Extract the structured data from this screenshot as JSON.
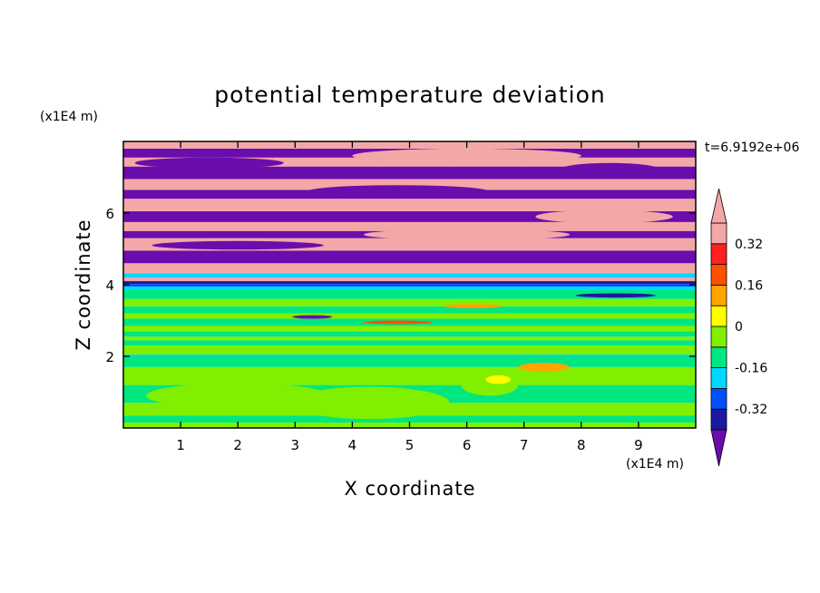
{
  "chart_data": {
    "type": "heatmap",
    "title": "potential temperature deviation",
    "xlabel": "X coordinate",
    "ylabel": "Z coordinate",
    "x_unit": "(x1E4 m)",
    "y_unit": "(x1E4 m)",
    "time_label": "t=6.9192e+06",
    "xlim": [
      0,
      10
    ],
    "ylim": [
      0,
      8
    ],
    "x_ticks": [
      1,
      2,
      3,
      4,
      5,
      6,
      7,
      8,
      9
    ],
    "y_ticks": [
      2,
      4,
      6
    ],
    "x_tick_labels": [
      "1",
      "2",
      "3",
      "4",
      "5",
      "6",
      "7",
      "8",
      "9"
    ],
    "y_tick_labels": [
      "2",
      "4",
      "6"
    ],
    "colorbar": {
      "levels": [
        -0.4,
        -0.32,
        -0.24,
        -0.16,
        -0.08,
        0,
        0.08,
        0.16,
        0.24,
        0.32,
        0.4
      ],
      "colors": [
        "#6a0dad",
        "#1a1aa0",
        "#0050ff",
        "#00d8ff",
        "#00e680",
        "#80f000",
        "#ffff00",
        "#ffa500",
        "#ff5000",
        "#ff2020",
        "#f4a7a7"
      ],
      "under_color": "#6a0dad",
      "over_color": "#f4a7a7",
      "tick_values": [
        -0.32,
        -0.16,
        0,
        0.16,
        0.32
      ],
      "tick_labels": [
        "-0.32",
        "-0.16",
        "0",
        "0.16",
        "0.32"
      ]
    },
    "bands": [
      {
        "z0": 0.0,
        "z1": 0.15,
        "color": "#80f000"
      },
      {
        "z0": 0.15,
        "z1": 0.35,
        "color": "#00e680"
      },
      {
        "z0": 0.35,
        "z1": 0.7,
        "color": "#80f000"
      },
      {
        "z0": 0.7,
        "z1": 1.2,
        "color": "#00e680"
      },
      {
        "z0": 1.2,
        "z1": 1.7,
        "color": "#80f000"
      },
      {
        "z0": 1.7,
        "z1": 2.0,
        "color": "#00e680"
      },
      {
        "z0": 2.0,
        "z1": 2.05,
        "color": "#00d8ff"
      },
      {
        "z0": 2.05,
        "z1": 2.3,
        "color": "#80f000"
      },
      {
        "z0": 2.3,
        "z1": 2.45,
        "color": "#00e680"
      },
      {
        "z0": 2.45,
        "z1": 2.55,
        "color": "#80f000"
      },
      {
        "z0": 2.55,
        "z1": 2.7,
        "color": "#00e680"
      },
      {
        "z0": 2.7,
        "z1": 2.85,
        "color": "#80f000"
      },
      {
        "z0": 2.85,
        "z1": 3.05,
        "color": "#00e680"
      },
      {
        "z0": 3.05,
        "z1": 3.2,
        "color": "#80f000"
      },
      {
        "z0": 3.2,
        "z1": 3.4,
        "color": "#00e680"
      },
      {
        "z0": 3.4,
        "z1": 3.6,
        "color": "#80f000"
      },
      {
        "z0": 3.6,
        "z1": 3.85,
        "color": "#00e680"
      },
      {
        "z0": 3.85,
        "z1": 3.95,
        "color": "#00d8ff"
      },
      {
        "z0": 3.95,
        "z1": 4.02,
        "color": "#0050ff"
      },
      {
        "z0": 4.02,
        "z1": 4.1,
        "color": "#1a1aa0"
      },
      {
        "z0": 4.1,
        "z1": 4.2,
        "color": "#f4a7a7"
      },
      {
        "z0": 4.2,
        "z1": 4.32,
        "color": "#00d8ff"
      },
      {
        "z0": 4.32,
        "z1": 4.6,
        "color": "#f4a7a7"
      },
      {
        "z0": 4.6,
        "z1": 4.95,
        "color": "#6a0dad"
      },
      {
        "z0": 4.95,
        "z1": 5.3,
        "color": "#f4a7a7"
      },
      {
        "z0": 5.3,
        "z1": 5.5,
        "color": "#6a0dad"
      },
      {
        "z0": 5.5,
        "z1": 5.75,
        "color": "#f4a7a7"
      },
      {
        "z0": 5.75,
        "z1": 6.05,
        "color": "#6a0dad"
      },
      {
        "z0": 6.05,
        "z1": 6.4,
        "color": "#f4a7a7"
      },
      {
        "z0": 6.4,
        "z1": 6.65,
        "color": "#6a0dad"
      },
      {
        "z0": 6.65,
        "z1": 6.95,
        "color": "#f4a7a7"
      },
      {
        "z0": 6.95,
        "z1": 7.3,
        "color": "#6a0dad"
      },
      {
        "z0": 7.3,
        "z1": 7.55,
        "color": "#f4a7a7"
      },
      {
        "z0": 7.55,
        "z1": 7.8,
        "color": "#6a0dad"
      },
      {
        "z0": 7.8,
        "z1": 8.0,
        "color": "#f4a7a7"
      }
    ],
    "patches": [
      {
        "x": 2.0,
        "z": 0.9,
        "rx": 1.6,
        "rz": 0.35,
        "color": "#80f000"
      },
      {
        "x": 4.3,
        "z": 0.7,
        "rx": 1.4,
        "rz": 0.45,
        "color": "#80f000"
      },
      {
        "x": 6.4,
        "z": 1.2,
        "rx": 0.5,
        "rz": 0.3,
        "color": "#80f000"
      },
      {
        "x": 6.55,
        "z": 1.35,
        "rx": 0.22,
        "rz": 0.12,
        "color": "#ffff00"
      },
      {
        "x": 7.35,
        "z": 1.7,
        "rx": 0.45,
        "rz": 0.12,
        "color": "#ffa500"
      },
      {
        "x": 8.5,
        "z": 1.5,
        "rx": 0.6,
        "rz": 0.2,
        "color": "#80f000"
      },
      {
        "x": 4.8,
        "z": 2.95,
        "rx": 0.6,
        "rz": 0.05,
        "color": "#ff5000"
      },
      {
        "x": 3.3,
        "z": 3.1,
        "rx": 0.35,
        "rz": 0.05,
        "color": "#6a0dad"
      },
      {
        "x": 6.1,
        "z": 3.4,
        "rx": 0.5,
        "rz": 0.06,
        "color": "#ffa500"
      },
      {
        "x": 8.6,
        "z": 3.7,
        "rx": 0.7,
        "rz": 0.06,
        "color": "#1a1aa0"
      },
      {
        "x": 2.0,
        "z": 5.1,
        "rx": 1.5,
        "rz": 0.12,
        "color": "#6a0dad"
      },
      {
        "x": 6.0,
        "z": 5.4,
        "rx": 1.8,
        "rz": 0.15,
        "color": "#f4a7a7"
      },
      {
        "x": 8.4,
        "z": 5.9,
        "rx": 1.2,
        "rz": 0.18,
        "color": "#f4a7a7"
      },
      {
        "x": 4.8,
        "z": 6.6,
        "rx": 1.6,
        "rz": 0.18,
        "color": "#6a0dad"
      },
      {
        "x": 1.5,
        "z": 7.4,
        "rx": 1.3,
        "rz": 0.15,
        "color": "#6a0dad"
      },
      {
        "x": 6.0,
        "z": 7.6,
        "rx": 2.0,
        "rz": 0.2,
        "color": "#f4a7a7"
      },
      {
        "x": 8.5,
        "z": 7.2,
        "rx": 0.9,
        "rz": 0.2,
        "color": "#6a0dad"
      }
    ]
  }
}
